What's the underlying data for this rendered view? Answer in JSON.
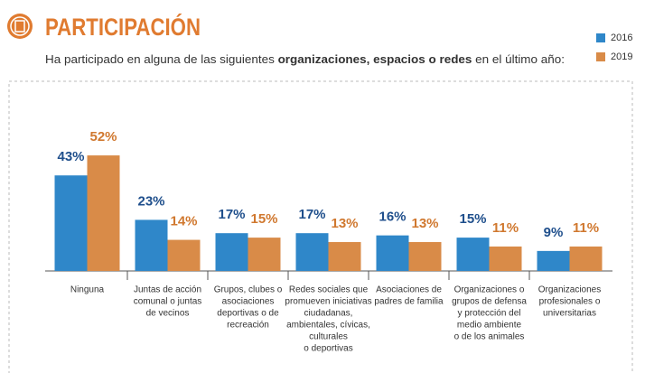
{
  "chart_data": {
    "type": "bar",
    "title": "PARTICIPACIÓN",
    "subtitle": [
      "Ha participado en alguna de las siguientes ",
      "organizaciones, espacios o redes",
      " en el último año:"
    ],
    "categories": [
      [
        "Ninguna"
      ],
      [
        "Juntas de acción",
        "comunal o juntas",
        "de vecinos"
      ],
      [
        "Grupos, clubes o",
        "asociaciones",
        "deportivas o de",
        "recreación"
      ],
      [
        "Redes sociales que",
        "promueven iniciativas",
        "ciudadanas,",
        "ambientales, cívicas,",
        "culturales",
        "o deportivas"
      ],
      [
        "Asociaciones de",
        "padres de familia"
      ],
      [
        "Organizaciones o",
        "grupos de defensa",
        "y protección del",
        "medio ambiente",
        "o de los animales"
      ],
      [
        "Organizaciones",
        "profesionales o",
        "universitarias"
      ]
    ],
    "series": [
      {
        "name": "2016",
        "color": "#2f87c9",
        "label_color": "#1f4f8c",
        "values": [
          43,
          23,
          17,
          17,
          16,
          15,
          9
        ],
        "value_labels": [
          "43%",
          "23%",
          "17%",
          "17%",
          "16%",
          "15%",
          "9%"
        ]
      },
      {
        "name": "2019",
        "color": "#d98b48",
        "label_color": "#d0782f",
        "values": [
          52,
          14,
          15,
          13,
          13,
          11,
          11
        ],
        "value_labels": [
          "52%",
          "14%",
          "15%",
          "13%",
          "13%",
          "11%",
          "11%"
        ]
      }
    ],
    "legend": "top-right"
  }
}
